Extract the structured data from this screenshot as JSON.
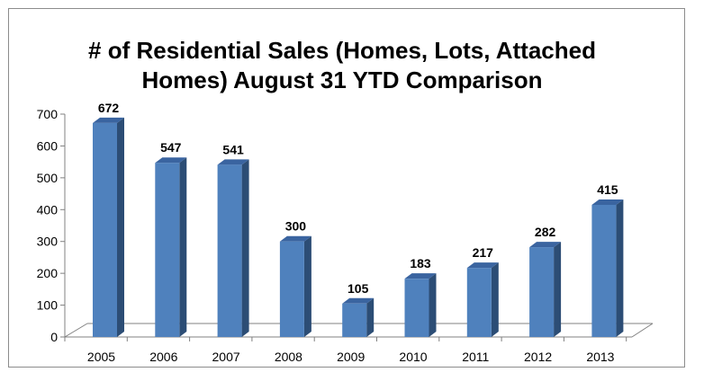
{
  "chart_data": {
    "type": "bar",
    "title_lines": [
      "# of Residential Sales (Homes, Lots, Attached",
      "Homes) August 31 YTD Comparison"
    ],
    "categories": [
      "2005",
      "2006",
      "2007",
      "2008",
      "2009",
      "2010",
      "2011",
      "2012",
      "2013"
    ],
    "values": [
      672,
      547,
      541,
      300,
      105,
      183,
      217,
      282,
      415
    ],
    "data_labels": [
      "672",
      "547",
      "541",
      "300",
      "105",
      "183",
      "217",
      "282",
      "415"
    ],
    "ylim": [
      0,
      700
    ],
    "yticks": [
      0,
      100,
      200,
      300,
      400,
      500,
      600,
      700
    ],
    "ytick_labels": [
      "0",
      "100",
      "200",
      "300",
      "400",
      "500",
      "600",
      "700"
    ],
    "xlabel": "",
    "ylabel": "",
    "grid": false,
    "style": "3d-column",
    "colors": {
      "bar_front": "#4f81bd",
      "bar_side": "#2c4d75",
      "bar_top": "#3a64a0",
      "axis": "#808080",
      "frame": "#8c8c8c"
    }
  }
}
